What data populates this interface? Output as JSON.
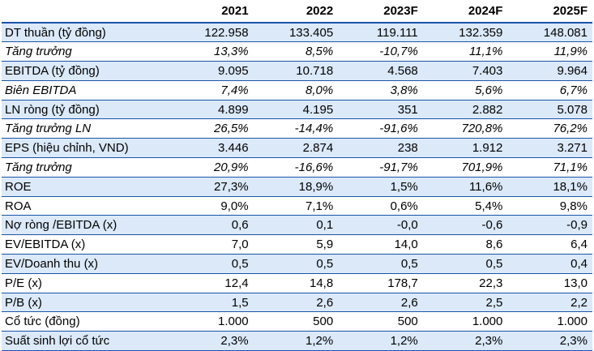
{
  "header": [
    "",
    "2021",
    "2022",
    "2023F",
    "2024F",
    "2025F"
  ],
  "rows": [
    {
      "label": "DT thuần (tỷ đồng)",
      "italic": false,
      "values": [
        "122.958",
        "133.405",
        "119.111",
        "132.359",
        "148.081"
      ]
    },
    {
      "label": "Tăng trưởng",
      "italic": true,
      "values": [
        "13,3%",
        "8,5%",
        "-10,7%",
        "11,1%",
        "11,9%"
      ]
    },
    {
      "label": "EBITDA (tỷ đồng)",
      "italic": false,
      "values": [
        "9.095",
        "10.718",
        "4.568",
        "7.403",
        "9.964"
      ]
    },
    {
      "label": "Biên EBITDA",
      "italic": true,
      "values": [
        "7,4%",
        "8,0%",
        "3,8%",
        "5,6%",
        "6,7%"
      ]
    },
    {
      "label": "LN ròng (tỷ đồng)",
      "italic": false,
      "values": [
        "4.899",
        "4.195",
        "351",
        "2.882",
        "5.078"
      ]
    },
    {
      "label": "Tăng trưởng LN",
      "italic": true,
      "values": [
        "26,5%",
        "-14,4%",
        "-91,6%",
        "720,8%",
        "76,2%"
      ]
    },
    {
      "label": "EPS (hiệu chỉnh, VND)",
      "italic": false,
      "values": [
        "3.446",
        "2.874",
        "238",
        "1.912",
        "3.271"
      ]
    },
    {
      "label": "Tăng trưởng",
      "italic": true,
      "values": [
        "20,9%",
        "-16,6%",
        "-91,7%",
        "701,9%",
        "71,1%"
      ]
    },
    {
      "label": "ROE",
      "italic": false,
      "values": [
        "27,3%",
        "18,9%",
        "1,5%",
        "11,6%",
        "18,1%"
      ]
    },
    {
      "label": "ROA",
      "italic": false,
      "values": [
        "9,0%",
        "7,1%",
        "0,6%",
        "5,4%",
        "9,8%"
      ]
    },
    {
      "label": "Nợ ròng /EBITDA (x)",
      "italic": false,
      "values": [
        "0,6",
        "0,1",
        "-0,0",
        "-0,6",
        "-0,9"
      ]
    },
    {
      "label": "EV/EBITDA (x)",
      "italic": false,
      "values": [
        "7,0",
        "5,9",
        "14,0",
        "8,6",
        "6,4"
      ]
    },
    {
      "label": "EV/Doanh thu (x)",
      "italic": false,
      "values": [
        "0,5",
        "0,5",
        "0,5",
        "0,5",
        "0,4"
      ]
    },
    {
      "label": "P/E (x)",
      "italic": false,
      "values": [
        "12,4",
        "14,8",
        "178,7",
        "22,3",
        "13,0"
      ]
    },
    {
      "label": "P/B (x)",
      "italic": false,
      "values": [
        "1,5",
        "2,6",
        "2,6",
        "2,5",
        "2,2"
      ]
    },
    {
      "label": "Cổ tức (đồng)",
      "italic": false,
      "values": [
        "1.000",
        "500",
        "500",
        "1.000",
        "1.000"
      ]
    },
    {
      "label": "Suất sinh lợi cổ tức",
      "italic": false,
      "values": [
        "2,3%",
        "1,2%",
        "1,2%",
        "2,3%",
        "2,3%"
      ]
    }
  ],
  "colors": {
    "band": "#dbe9f9",
    "rule": "#1a54a8"
  }
}
